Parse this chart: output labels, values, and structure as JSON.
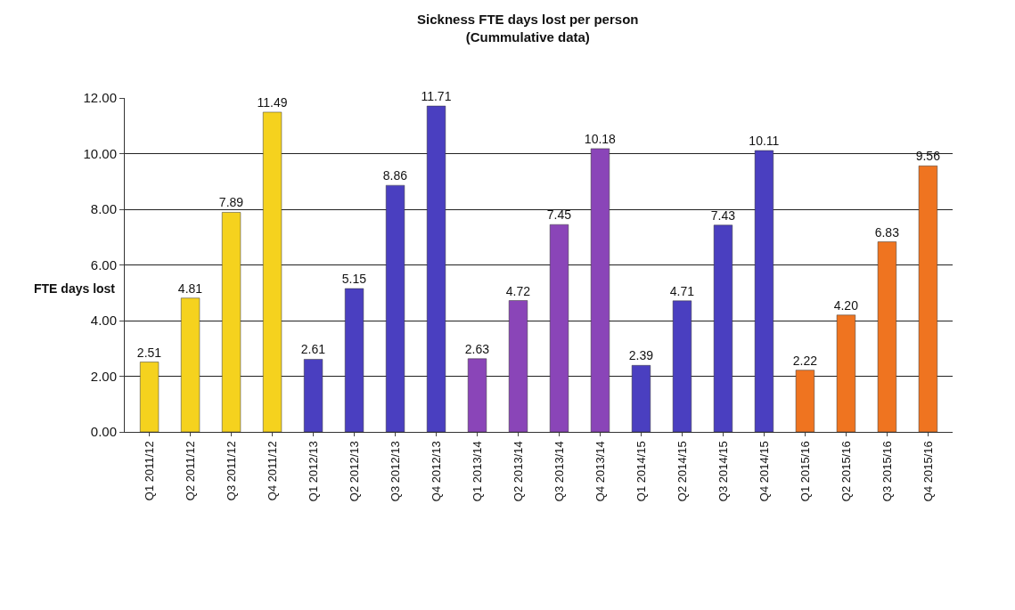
{
  "chart_data": {
    "type": "bar",
    "title": "Sickness FTE days lost per person",
    "subtitle": "(Cummulative data)",
    "ylabel": "FTE days lost",
    "categories": [
      "Q1 2011/12",
      "Q2 2011/12",
      "Q3 2011/12",
      "Q4 2011/12",
      "Q1 2012/13",
      "Q2 2012/13",
      "Q3 2012/13",
      "Q4 2012/13",
      "Q1 2013/14",
      "Q2 2013/14",
      "Q3 2013/14",
      "Q4 2013/14",
      "Q1 2014/15",
      "Q2 2014/15",
      "Q3 2014/15",
      "Q4 2014/15",
      "Q1 2015/16",
      "Q2 2015/16",
      "Q3 2015/16",
      "Q4 2015/16"
    ],
    "values": [
      2.51,
      4.81,
      7.89,
      11.49,
      2.61,
      5.15,
      8.86,
      11.71,
      2.63,
      4.72,
      7.45,
      10.18,
      2.39,
      4.71,
      7.43,
      10.11,
      2.22,
      4.2,
      6.83,
      9.56
    ],
    "value_labels": [
      "2.51",
      "4.81",
      "7.89",
      "11.49",
      "2.61",
      "5.15",
      "8.86",
      "11.71",
      "2.63",
      "4.72",
      "7.45",
      "10.18",
      "2.39",
      "4.71",
      "7.43",
      "10.11",
      "2.22",
      "4.20",
      "6.83",
      "9.56"
    ],
    "colors": [
      "#f5d21e",
      "#f5d21e",
      "#f5d21e",
      "#f5d21e",
      "#4a3fc0",
      "#4a3fc0",
      "#4a3fc0",
      "#4a3fc0",
      "#8a45b8",
      "#8a45b8",
      "#8a45b8",
      "#8a45b8",
      "#4a3fc0",
      "#4a3fc0",
      "#4a3fc0",
      "#4a3fc0",
      "#ef7420",
      "#ef7420",
      "#ef7420",
      "#ef7420"
    ],
    "ylim": [
      0,
      12
    ],
    "yticks": [
      {
        "value": 0,
        "label": "0.00"
      },
      {
        "value": 2,
        "label": "2.00"
      },
      {
        "value": 4,
        "label": "4.00"
      },
      {
        "value": 6,
        "label": "6.00"
      },
      {
        "value": 8,
        "label": "8.00"
      },
      {
        "value": 10,
        "label": "10.00"
      },
      {
        "value": 12,
        "label": "12.00"
      }
    ],
    "grid": "y"
  }
}
